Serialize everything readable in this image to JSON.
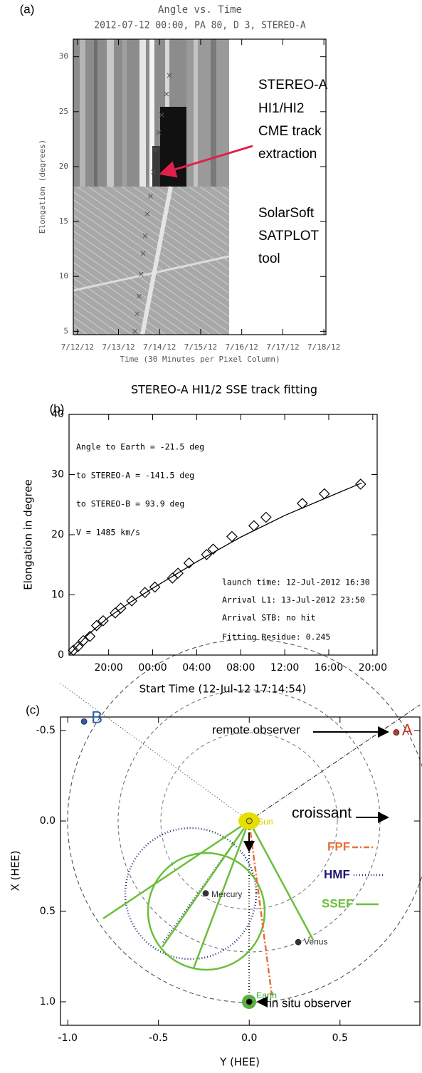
{
  "chart_data": [
    {
      "type": "scatter",
      "panel_label": "(a)",
      "title": "Angle vs. Time",
      "subtitle": "2012-07-12 00:00, PA 80, D 3, STEREO-A",
      "x_label": "Time (30 Minutes per Pixel Column)",
      "y_label": "Elongation (degrees)",
      "xlim": [
        11.9,
        18.05
      ],
      "ylim": [
        4.7,
        31.6
      ],
      "xticks": [
        {
          "value": 12,
          "label": "7/12/12"
        },
        {
          "value": 13,
          "label": "7/13/12"
        },
        {
          "value": 14,
          "label": "7/14/12"
        },
        {
          "value": 15,
          "label": "7/15/12"
        },
        {
          "value": 16,
          "label": "7/16/12"
        },
        {
          "value": 17,
          "label": "7/17/12"
        },
        {
          "value": 18,
          "label": "7/18/12"
        }
      ],
      "yticks": [
        5,
        10,
        15,
        20,
        25,
        30
      ],
      "series": [
        {
          "marker": "x",
          "color": "#555555",
          "x": [
            13.4,
            13.45,
            13.5,
            13.55,
            13.6,
            13.65,
            13.7,
            13.78,
            13.85,
            13.9,
            13.98,
            14.05,
            14.17,
            14.24
          ],
          "values": [
            5.0,
            6.6,
            8.2,
            10.2,
            12.1,
            13.7,
            15.7,
            17.3,
            19.5,
            21.5,
            23.1,
            24.7,
            26.6,
            28.3
          ]
        }
      ],
      "annotations": [
        "STEREO-A",
        "HI1/HI2",
        "CME track",
        "extraction",
        "SolarSoft",
        "SATPLOT",
        "tool"
      ]
    },
    {
      "type": "scatter",
      "panel_label": "(b)",
      "title": "STEREO-A HI1/2 SSE track fitting",
      "x_label": "Start Time (12-Jul-12 17:14:54)",
      "y_label": "Elongation in degree",
      "xlim": [
        16.4,
        44.4
      ],
      "ylim": [
        0,
        40
      ],
      "xticks": [
        {
          "value": 20,
          "label": "20:00"
        },
        {
          "value": 24,
          "label": "00:00"
        },
        {
          "value": 28,
          "label": "04:00"
        },
        {
          "value": 32,
          "label": "08:00"
        },
        {
          "value": 36,
          "label": "12:00"
        },
        {
          "value": 40,
          "label": "16:00"
        },
        {
          "value": 44,
          "label": "20:00"
        }
      ],
      "yticks": [
        0,
        10,
        20,
        30,
        40
      ],
      "series": [
        {
          "marker": "diamond",
          "color": "#000000",
          "x": [
            16.8,
            17.2,
            17.7,
            18.3,
            18.9,
            19.5,
            20.6,
            21.1,
            22.1,
            23.3,
            24.2,
            25.8,
            26.3,
            27.3,
            28.9,
            29.5,
            31.2,
            33.2,
            34.3,
            37.6,
            39.6,
            42.9
          ],
          "values": [
            0.8,
            1.4,
            2.4,
            3.1,
            4.9,
            5.7,
            7.0,
            7.8,
            9.0,
            10.4,
            11.3,
            12.8,
            13.6,
            15.3,
            16.7,
            17.6,
            19.7,
            21.5,
            22.9,
            25.2,
            26.8,
            28.4
          ]
        },
        {
          "marker": "line",
          "color": "#000000",
          "x": [
            16.4,
            18,
            20,
            22,
            24,
            28,
            32,
            36,
            40,
            43
          ],
          "values": [
            0,
            3.2,
            6.3,
            8.8,
            11.1,
            15.5,
            19.6,
            23.2,
            26.3,
            28.6
          ]
        }
      ],
      "annotations": [
        "Angle to Earth = -21.5 deg",
        "to STEREO-A = -141.5 deg",
        "to STEREO-B = 93.9 deg",
        "V = 1485 km/s",
        "launch time: 12-Jul-2012 16:30",
        "Arrival L1: 13-Jul-2012 23:50",
        "Arrival STB: no hit",
        "Fitting Residue: 0.245"
      ]
    },
    {
      "type": "scatter",
      "panel_label": "(c)",
      "x_label": "Y (HEE)",
      "y_label": "X (HEE)",
      "xlim": [
        -1.04,
        0.94
      ],
      "ylim": [
        -0.575,
        1.13
      ],
      "invert_y": true,
      "xticks": [
        {
          "value": -1,
          "label": "-1.0"
        },
        {
          "value": -0.5,
          "label": "-0.5"
        },
        {
          "value": 0,
          "label": "0.0"
        },
        {
          "value": 0.5,
          "label": "0.5"
        }
      ],
      "yticks": [
        {
          "value": -0.5,
          "label": "-0.5"
        },
        {
          "value": 0,
          "label": "0.0"
        },
        {
          "value": 0.5,
          "label": "0.5"
        },
        {
          "value": 1,
          "label": "1.0"
        }
      ],
      "points": [
        {
          "label": "B",
          "x": -0.91,
          "y": -0.55,
          "color": "#2a5fa8"
        },
        {
          "label": "A",
          "x": 0.81,
          "y": -0.49,
          "color": "#c0392b"
        },
        {
          "label": "Sun",
          "x": 0,
          "y": 0,
          "color": "#d8d000"
        },
        {
          "label": "Mercury",
          "x": -0.24,
          "y": 0.4,
          "color": "#333333"
        },
        {
          "label": "Venus",
          "x": 0.27,
          "y": 0.67,
          "color": "#333333"
        },
        {
          "label": "Earth",
          "x": 0,
          "y": 1.0,
          "color": "#3aa02a"
        }
      ],
      "legend": [
        {
          "name": "FPF",
          "color": "#e8703a"
        },
        {
          "name": "HMF",
          "color": "#1a1a6e"
        },
        {
          "name": "SSEF",
          "color": "#6abf3a"
        }
      ],
      "annotations": [
        "croissant",
        "remote observer",
        "in situ observer"
      ]
    }
  ]
}
